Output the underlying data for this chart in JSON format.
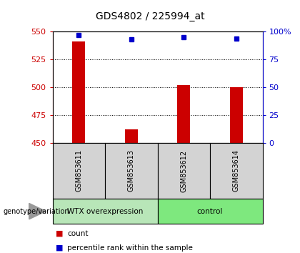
{
  "title": "GDS4802 / 225994_at",
  "samples": [
    "GSM853611",
    "GSM853613",
    "GSM853612",
    "GSM853614"
  ],
  "bar_values": [
    541,
    462,
    502,
    500
  ],
  "percentile_values": [
    97,
    93,
    95,
    94
  ],
  "ylim_left": [
    450,
    550
  ],
  "ylim_right": [
    0,
    100
  ],
  "yticks_left": [
    450,
    475,
    500,
    525,
    550
  ],
  "yticks_right": [
    0,
    25,
    50,
    75,
    100
  ],
  "ytick_labels_right": [
    "0",
    "25",
    "50",
    "75",
    "100%"
  ],
  "bar_color": "#cc0000",
  "percentile_color": "#0000cc",
  "bar_width": 0.25,
  "label_area_color": "#d3d3d3",
  "wtx_box_color": "#b8e6b8",
  "control_box_color": "#7ee87e",
  "legend_count_label": "count",
  "legend_pct_label": "percentile rank within the sample",
  "group_separator": 2,
  "groups_info": [
    {
      "name": "WTX overexpression",
      "start": 0,
      "end": 2,
      "color": "#b8e6b8"
    },
    {
      "name": "control",
      "start": 2,
      "end": 4,
      "color": "#7ee87e"
    }
  ]
}
